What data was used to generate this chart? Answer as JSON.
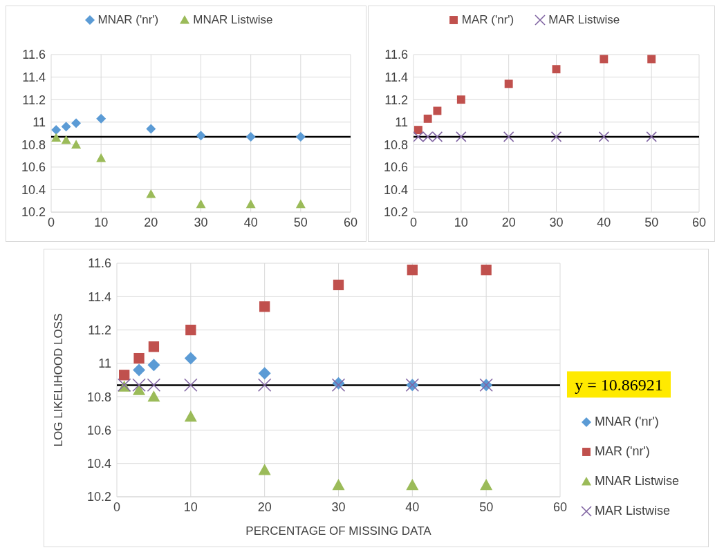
{
  "chart_data": [
    {
      "type": "scatter",
      "x": [
        1,
        3,
        5,
        10,
        20,
        30,
        40,
        50
      ],
      "xlim": [
        0,
        60
      ],
      "xticks": [
        0,
        10,
        20,
        30,
        40,
        50,
        60
      ],
      "ylim": [
        10.2,
        11.6
      ],
      "yticks": [
        10.2,
        10.4,
        10.6,
        10.8,
        11,
        11.2,
        11.4,
        11.6
      ],
      "grid": true,
      "legend": "top",
      "series": [
        {
          "name": "MNAR ('nr')",
          "color": "#5b9bd5",
          "marker": "diamond",
          "values": [
            10.93,
            10.96,
            10.99,
            11.03,
            10.94,
            10.88,
            10.87,
            10.87
          ]
        },
        {
          "name": "MNAR Listwise",
          "color": "#9bbb59",
          "marker": "triangle",
          "values": [
            10.86,
            10.84,
            10.8,
            10.68,
            10.36,
            10.27,
            10.27,
            10.27
          ]
        }
      ],
      "ref_lines": [
        {
          "axis": "y",
          "value": 10.86921,
          "color": "#000000"
        }
      ]
    },
    {
      "type": "scatter",
      "x": [
        1,
        3,
        5,
        10,
        20,
        30,
        40,
        50
      ],
      "xlim": [
        0,
        60
      ],
      "xticks": [
        0,
        10,
        20,
        30,
        40,
        50,
        60
      ],
      "ylim": [
        10.2,
        11.6
      ],
      "yticks": [
        10.2,
        10.4,
        10.6,
        10.8,
        11,
        11.2,
        11.4,
        11.6
      ],
      "grid": true,
      "legend": "top",
      "series": [
        {
          "name": "MAR ('nr')",
          "color": "#c0504d",
          "marker": "square",
          "values": [
            10.93,
            11.03,
            11.1,
            11.2,
            11.34,
            11.47,
            11.56,
            11.56
          ]
        },
        {
          "name": "MAR Listwise",
          "color": "#8064a2",
          "marker": "cross",
          "values": [
            10.87,
            10.87,
            10.87,
            10.87,
            10.87,
            10.87,
            10.87,
            10.87
          ]
        }
      ],
      "ref_lines": [
        {
          "axis": "y",
          "value": 10.86921,
          "color": "#000000"
        }
      ]
    },
    {
      "type": "scatter",
      "x": [
        1,
        3,
        5,
        10,
        20,
        30,
        40,
        50
      ],
      "xlim": [
        0,
        60
      ],
      "xticks": [
        0,
        10,
        20,
        30,
        40,
        50,
        60
      ],
      "ylim": [
        10.2,
        11.6
      ],
      "yticks": [
        10.2,
        10.4,
        10.6,
        10.8,
        11,
        11.2,
        11.4,
        11.6
      ],
      "grid": true,
      "legend": "right",
      "xlabel": "PERCENTAGE OF MISSING DATA",
      "ylabel": "LOG LIKELIHOOD LOSS",
      "series": [
        {
          "name": "MNAR ('nr')",
          "color": "#5b9bd5",
          "marker": "diamond",
          "values": [
            null,
            10.96,
            10.99,
            11.03,
            10.94,
            10.88,
            10.87,
            10.87
          ]
        },
        {
          "name": "MAR ('nr')",
          "color": "#c0504d",
          "marker": "square",
          "values": [
            10.93,
            11.03,
            11.1,
            11.2,
            11.34,
            11.47,
            11.56,
            11.56
          ]
        },
        {
          "name": "MNAR Listwise",
          "color": "#9bbb59",
          "marker": "triangle",
          "values": [
            10.86,
            10.84,
            10.8,
            10.68,
            10.36,
            10.27,
            10.27,
            10.27
          ]
        },
        {
          "name": "MAR Listwise",
          "color": "#8064a2",
          "marker": "cross",
          "values": [
            10.87,
            10.87,
            10.87,
            10.87,
            10.87,
            10.87,
            10.87,
            10.87
          ]
        }
      ],
      "ref_lines": [
        {
          "axis": "y",
          "value": 10.86921,
          "label": "y = 10.86921",
          "color": "#000000"
        }
      ]
    }
  ]
}
